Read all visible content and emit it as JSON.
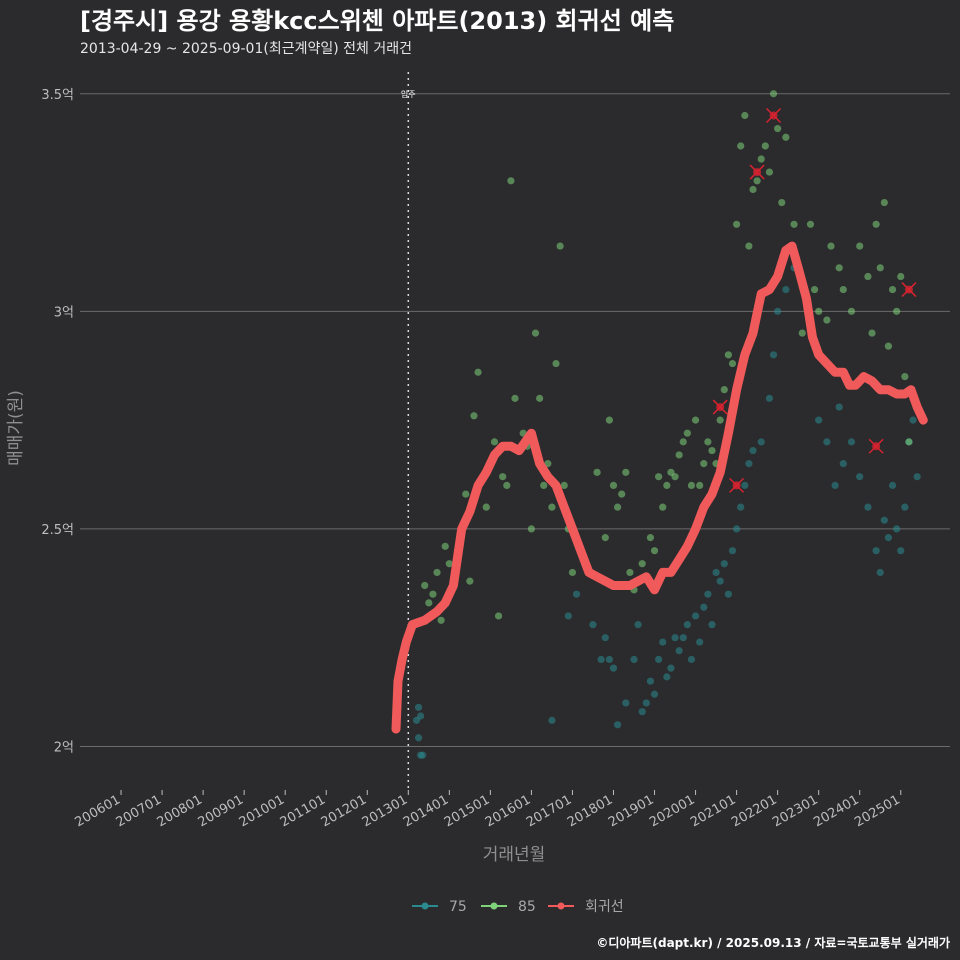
{
  "colors": {
    "background": "#2b2b2d",
    "grid": "#6b6b6b",
    "s75": "#2a8a8f",
    "s85": "#7ed27a",
    "regression": "#f05a5a",
    "outlier": "#d9232f",
    "text": "#ffffff"
  },
  "chart_data": {
    "type": "scatter",
    "title": "[경주시] 용강 용황kcc스위첸 아파트(2013) 회귀선 예측",
    "subtitle": "2013-04-29 ~ 2025-09-01(최근계약일) 전체 거래건",
    "xlabel": "거래년월",
    "ylabel": "매매가(원)",
    "caption": "©디아파트(dapt.kr) / 2025.09.13 / 자료=국토교통부 실거래가",
    "xlim": [
      2005.0,
      2026.2
    ],
    "ylim": [
      1.9,
      3.55
    ],
    "x_ticks": [
      {
        "label": "200601",
        "value": 2006.0
      },
      {
        "label": "200701",
        "value": 2007.0
      },
      {
        "label": "200801",
        "value": 2008.0
      },
      {
        "label": "200901",
        "value": 2009.0
      },
      {
        "label": "201001",
        "value": 2010.0
      },
      {
        "label": "201101",
        "value": 2011.0
      },
      {
        "label": "201201",
        "value": 2012.0
      },
      {
        "label": "201301",
        "value": 2013.0
      },
      {
        "label": "201401",
        "value": 2014.0
      },
      {
        "label": "201501",
        "value": 2015.0
      },
      {
        "label": "201601",
        "value": 2016.0
      },
      {
        "label": "201701",
        "value": 2017.0
      },
      {
        "label": "201801",
        "value": 2018.0
      },
      {
        "label": "201901",
        "value": 2019.0
      },
      {
        "label": "202001",
        "value": 2020.0
      },
      {
        "label": "202101",
        "value": 2021.0
      },
      {
        "label": "202201",
        "value": 2022.0
      },
      {
        "label": "202301",
        "value": 2023.0
      },
      {
        "label": "202401",
        "value": 2024.0
      },
      {
        "label": "202501",
        "value": 2025.0
      }
    ],
    "y_ticks": [
      {
        "label": "2억",
        "value": 2.0
      },
      {
        "label": "2.5억",
        "value": 2.5
      },
      {
        "label": "3억",
        "value": 3.0
      },
      {
        "label": "3.5억",
        "value": 3.5
      }
    ],
    "annotation": {
      "label": "입주",
      "x": 2013.0
    },
    "legend": [
      "75",
      "85",
      "회귀선"
    ],
    "series": [
      {
        "name": "75",
        "values": [
          [
            2013.2,
            2.06
          ],
          [
            2013.25,
            2.02
          ],
          [
            2013.3,
            1.98
          ],
          [
            2013.35,
            1.98
          ],
          [
            2013.3,
            2.07
          ],
          [
            2013.25,
            2.09
          ],
          [
            2016.5,
            2.06
          ],
          [
            2016.9,
            2.3
          ],
          [
            2017.1,
            2.35
          ],
          [
            2017.4,
            2.4
          ],
          [
            2017.5,
            2.28
          ],
          [
            2017.7,
            2.2
          ],
          [
            2017.8,
            2.25
          ],
          [
            2017.9,
            2.2
          ],
          [
            2018.0,
            2.18
          ],
          [
            2018.1,
            2.05
          ],
          [
            2018.3,
            2.1
          ],
          [
            2018.5,
            2.2
          ],
          [
            2018.6,
            2.28
          ],
          [
            2018.7,
            2.08
          ],
          [
            2018.8,
            2.1
          ],
          [
            2018.9,
            2.15
          ],
          [
            2019.0,
            2.12
          ],
          [
            2019.1,
            2.2
          ],
          [
            2019.2,
            2.24
          ],
          [
            2019.3,
            2.16
          ],
          [
            2019.4,
            2.18
          ],
          [
            2019.5,
            2.25
          ],
          [
            2019.6,
            2.22
          ],
          [
            2019.7,
            2.25
          ],
          [
            2019.8,
            2.28
          ],
          [
            2019.9,
            2.2
          ],
          [
            2020.0,
            2.3
          ],
          [
            2020.1,
            2.24
          ],
          [
            2020.2,
            2.32
          ],
          [
            2020.3,
            2.35
          ],
          [
            2020.4,
            2.28
          ],
          [
            2020.5,
            2.4
          ],
          [
            2020.6,
            2.38
          ],
          [
            2020.7,
            2.42
          ],
          [
            2020.8,
            2.35
          ],
          [
            2020.9,
            2.45
          ],
          [
            2021.0,
            2.5
          ],
          [
            2021.1,
            2.55
          ],
          [
            2021.2,
            2.6
          ],
          [
            2021.3,
            2.65
          ],
          [
            2021.4,
            2.68
          ],
          [
            2021.6,
            2.7
          ],
          [
            2021.8,
            2.8
          ],
          [
            2021.9,
            2.9
          ],
          [
            2022.0,
            3.0
          ],
          [
            2022.2,
            3.05
          ],
          [
            2022.4,
            3.1
          ],
          [
            2023.0,
            2.75
          ],
          [
            2023.2,
            2.7
          ],
          [
            2023.4,
            2.6
          ],
          [
            2023.5,
            2.78
          ],
          [
            2023.6,
            2.65
          ],
          [
            2023.8,
            2.7
          ],
          [
            2024.0,
            2.62
          ],
          [
            2024.2,
            2.55
          ],
          [
            2024.4,
            2.45
          ],
          [
            2024.5,
            2.4
          ],
          [
            2024.6,
            2.52
          ],
          [
            2024.7,
            2.48
          ],
          [
            2024.8,
            2.6
          ],
          [
            2024.9,
            2.5
          ],
          [
            2025.0,
            2.45
          ],
          [
            2025.1,
            2.55
          ],
          [
            2025.2,
            2.7
          ],
          [
            2025.3,
            2.75
          ],
          [
            2025.4,
            2.62
          ]
        ]
      },
      {
        "name": "85",
        "values": [
          [
            2013.4,
            2.37
          ],
          [
            2013.5,
            2.33
          ],
          [
            2013.6,
            2.35
          ],
          [
            2013.7,
            2.4
          ],
          [
            2013.8,
            2.29
          ],
          [
            2013.9,
            2.46
          ],
          [
            2014.0,
            2.42
          ],
          [
            2014.2,
            2.45
          ],
          [
            2014.4,
            2.58
          ],
          [
            2014.5,
            2.38
          ],
          [
            2014.6,
            2.76
          ],
          [
            2014.7,
            2.86
          ],
          [
            2014.9,
            2.55
          ],
          [
            2015.0,
            2.65
          ],
          [
            2015.1,
            2.7
          ],
          [
            2015.2,
            2.3
          ],
          [
            2015.3,
            2.62
          ],
          [
            2015.4,
            2.6
          ],
          [
            2015.5,
            3.3
          ],
          [
            2015.6,
            2.8
          ],
          [
            2015.7,
            2.68
          ],
          [
            2015.8,
            2.72
          ],
          [
            2015.9,
            2.69
          ],
          [
            2016.0,
            2.5
          ],
          [
            2016.1,
            2.95
          ],
          [
            2016.2,
            2.8
          ],
          [
            2016.3,
            2.6
          ],
          [
            2016.4,
            2.65
          ],
          [
            2016.5,
            2.55
          ],
          [
            2016.6,
            2.88
          ],
          [
            2016.7,
            3.15
          ],
          [
            2016.8,
            2.6
          ],
          [
            2016.9,
            2.5
          ],
          [
            2017.0,
            2.4
          ],
          [
            2017.2,
            2.45
          ],
          [
            2017.4,
            2.4
          ],
          [
            2017.6,
            2.63
          ],
          [
            2017.8,
            2.48
          ],
          [
            2017.9,
            2.75
          ],
          [
            2018.0,
            2.6
          ],
          [
            2018.1,
            2.55
          ],
          [
            2018.2,
            2.58
          ],
          [
            2018.3,
            2.63
          ],
          [
            2018.4,
            2.4
          ],
          [
            2018.5,
            2.36
          ],
          [
            2018.7,
            2.42
          ],
          [
            2018.9,
            2.48
          ],
          [
            2019.0,
            2.45
          ],
          [
            2019.1,
            2.62
          ],
          [
            2019.2,
            2.55
          ],
          [
            2019.3,
            2.6
          ],
          [
            2019.4,
            2.63
          ],
          [
            2019.5,
            2.62
          ],
          [
            2019.6,
            2.67
          ],
          [
            2019.7,
            2.7
          ],
          [
            2019.8,
            2.72
          ],
          [
            2019.9,
            2.6
          ],
          [
            2020.0,
            2.75
          ],
          [
            2020.1,
            2.6
          ],
          [
            2020.2,
            2.65
          ],
          [
            2020.3,
            2.7
          ],
          [
            2020.4,
            2.68
          ],
          [
            2020.5,
            2.65
          ],
          [
            2020.6,
            2.75
          ],
          [
            2020.7,
            2.82
          ],
          [
            2020.8,
            2.9
          ],
          [
            2020.9,
            2.88
          ],
          [
            2021.0,
            3.2
          ],
          [
            2021.1,
            3.38
          ],
          [
            2021.2,
            3.45
          ],
          [
            2021.3,
            3.15
          ],
          [
            2021.4,
            3.28
          ],
          [
            2021.5,
            3.3
          ],
          [
            2021.6,
            3.35
          ],
          [
            2021.7,
            3.38
          ],
          [
            2021.8,
            3.32
          ],
          [
            2021.9,
            3.5
          ],
          [
            2022.0,
            3.42
          ],
          [
            2022.1,
            3.25
          ],
          [
            2022.2,
            3.4
          ],
          [
            2022.4,
            3.2
          ],
          [
            2022.6,
            2.95
          ],
          [
            2022.8,
            3.2
          ],
          [
            2022.9,
            3.05
          ],
          [
            2023.0,
            3.0
          ],
          [
            2023.2,
            2.98
          ],
          [
            2023.3,
            3.15
          ],
          [
            2023.5,
            3.1
          ],
          [
            2023.6,
            3.05
          ],
          [
            2023.8,
            3.0
          ],
          [
            2024.0,
            3.15
          ],
          [
            2024.2,
            3.08
          ],
          [
            2024.3,
            2.95
          ],
          [
            2024.4,
            3.2
          ],
          [
            2024.5,
            3.1
          ],
          [
            2024.6,
            3.25
          ],
          [
            2024.7,
            2.92
          ],
          [
            2024.8,
            3.05
          ],
          [
            2024.9,
            3.0
          ],
          [
            2025.0,
            3.08
          ],
          [
            2025.1,
            2.85
          ],
          [
            2025.2,
            2.7
          ],
          [
            2025.3,
            2.8
          ]
        ]
      },
      {
        "name": "회귀선",
        "values": [
          [
            2012.7,
            2.04
          ],
          [
            2012.75,
            2.15
          ],
          [
            2012.85,
            2.2
          ],
          [
            2012.95,
            2.24
          ],
          [
            2013.1,
            2.28
          ],
          [
            2013.4,
            2.29
          ],
          [
            2013.7,
            2.31
          ],
          [
            2013.9,
            2.33
          ],
          [
            2014.1,
            2.37
          ],
          [
            2014.3,
            2.5
          ],
          [
            2014.5,
            2.54
          ],
          [
            2014.7,
            2.6
          ],
          [
            2014.9,
            2.63
          ],
          [
            2015.1,
            2.67
          ],
          [
            2015.3,
            2.69
          ],
          [
            2015.5,
            2.69
          ],
          [
            2015.7,
            2.68
          ],
          [
            2015.85,
            2.7
          ],
          [
            2016.0,
            2.72
          ],
          [
            2016.2,
            2.65
          ],
          [
            2016.4,
            2.62
          ],
          [
            2016.6,
            2.6
          ],
          [
            2016.8,
            2.55
          ],
          [
            2017.0,
            2.5
          ],
          [
            2017.2,
            2.45
          ],
          [
            2017.4,
            2.4
          ],
          [
            2017.6,
            2.39
          ],
          [
            2017.8,
            2.38
          ],
          [
            2018.0,
            2.37
          ],
          [
            2018.2,
            2.37
          ],
          [
            2018.4,
            2.37
          ],
          [
            2018.6,
            2.38
          ],
          [
            2018.8,
            2.39
          ],
          [
            2019.0,
            2.36
          ],
          [
            2019.2,
            2.4
          ],
          [
            2019.4,
            2.4
          ],
          [
            2019.6,
            2.43
          ],
          [
            2019.8,
            2.46
          ],
          [
            2020.0,
            2.5
          ],
          [
            2020.2,
            2.55
          ],
          [
            2020.4,
            2.58
          ],
          [
            2020.6,
            2.63
          ],
          [
            2020.8,
            2.72
          ],
          [
            2021.0,
            2.82
          ],
          [
            2021.2,
            2.9
          ],
          [
            2021.4,
            2.95
          ],
          [
            2021.6,
            3.04
          ],
          [
            2021.8,
            3.05
          ],
          [
            2022.0,
            3.08
          ],
          [
            2022.2,
            3.14
          ],
          [
            2022.35,
            3.15
          ],
          [
            2022.5,
            3.1
          ],
          [
            2022.7,
            3.03
          ],
          [
            2022.85,
            2.94
          ],
          [
            2023.0,
            2.9
          ],
          [
            2023.2,
            2.88
          ],
          [
            2023.4,
            2.86
          ],
          [
            2023.6,
            2.86
          ],
          [
            2023.75,
            2.83
          ],
          [
            2023.9,
            2.83
          ],
          [
            2024.1,
            2.85
          ],
          [
            2024.3,
            2.84
          ],
          [
            2024.5,
            2.82
          ],
          [
            2024.7,
            2.82
          ],
          [
            2024.9,
            2.81
          ],
          [
            2025.1,
            2.81
          ],
          [
            2025.25,
            2.82
          ],
          [
            2025.4,
            2.78
          ],
          [
            2025.55,
            2.75
          ]
        ]
      },
      {
        "name": "outlier",
        "values": [
          [
            2020.6,
            2.78
          ],
          [
            2021.0,
            2.6
          ],
          [
            2021.5,
            3.32
          ],
          [
            2021.9,
            3.45
          ],
          [
            2024.4,
            2.69
          ],
          [
            2025.2,
            3.05
          ]
        ]
      }
    ]
  }
}
